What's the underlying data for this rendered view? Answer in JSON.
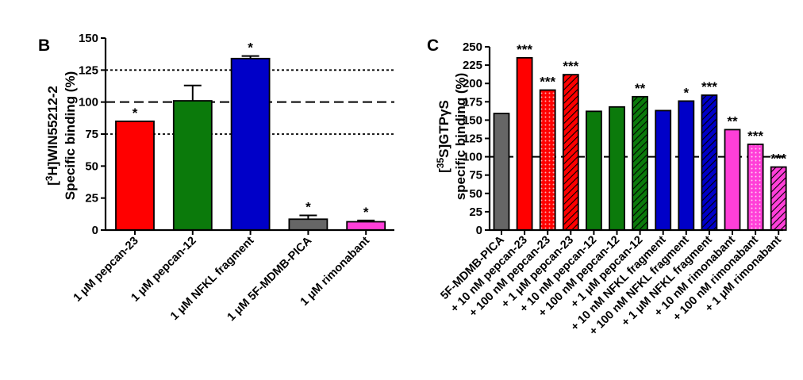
{
  "chart_data": [
    {
      "type": "bar",
      "panel_label": "B",
      "ylabel_line1": "[3H]WIN55212-2",
      "ylabel_line1_parts": {
        "pre": "[",
        "sup": "3",
        "post": "H]WIN55212-2"
      },
      "ylabel_line2": "Specific binding (%)",
      "ylim": [
        0,
        150
      ],
      "yticks": [
        0,
        25,
        50,
        75,
        100,
        125,
        150
      ],
      "reference_lines": [
        {
          "y": 75,
          "style": "dotted"
        },
        {
          "y": 100,
          "style": "dashed"
        },
        {
          "y": 125,
          "style": "dotted"
        }
      ],
      "categories": [
        "1 μM pepcan-23",
        "1 μM pepcan-12",
        "1 μM NFKL fragment",
        "1 μM 5F-MDMB-PICA",
        "1 μM rimonabant"
      ],
      "values": [
        85,
        101,
        134,
        8.5,
        6.5
      ],
      "errors": [
        0,
        12,
        2,
        3,
        1
      ],
      "significance": [
        "*",
        "",
        "*",
        "*",
        "*"
      ],
      "colors": [
        "#ff0000",
        "#0b7a0b",
        "#0000c8",
        "#666666",
        "#ff3fd8"
      ],
      "patterns": [
        "solid",
        "solid",
        "solid",
        "solid",
        "solid"
      ]
    },
    {
      "type": "bar",
      "panel_label": "C",
      "ylabel_line1": "[35S]GTPγS",
      "ylabel_line1_parts": {
        "pre": "[",
        "sup": "35",
        "post": "S]GTPγS"
      },
      "ylabel_line2": "specific binding (%)",
      "ylim": [
        0,
        250
      ],
      "yticks": [
        0,
        25,
        50,
        75,
        100,
        125,
        150,
        175,
        200,
        225,
        250
      ],
      "reference_lines": [
        {
          "y": 100,
          "style": "dashed"
        }
      ],
      "categories": [
        "5F-MDMB-PICA",
        "+ 10 nM pepcan-23",
        "+ 100 nM pepcan-23",
        "+ 1 μM pepcan-23",
        "+ 10 nM pepcan-12",
        "+ 100 nM pepcan-12",
        "+ 1 μM pepcan-12",
        "+ 10 nM NFKL fragment",
        "+ 100 nM NFKL fragment",
        "+ 1 μM NFKL fragment",
        "+ 10 nM rimonabant",
        "+ 100 nM rimonabant",
        "+ 1 μM rimonabant"
      ],
      "values": [
        159,
        235,
        191,
        212,
        162,
        168,
        182,
        163,
        176,
        184,
        137,
        117,
        86
      ],
      "significance": [
        "",
        "***",
        "***",
        "***",
        "",
        "",
        "**",
        "",
        "*",
        "***",
        "**",
        "***",
        "***"
      ],
      "colors": [
        "#666666",
        "#ff0000",
        "#ff0000",
        "#ff0000",
        "#0b7a0b",
        "#0b7a0b",
        "#0b7a0b",
        "#0000c8",
        "#0000c8",
        "#0000c8",
        "#ff3fd8",
        "#ff3fd8",
        "#ff3fd8"
      ],
      "patterns": [
        "solid",
        "solid",
        "dots",
        "hatch",
        "solid",
        "solid",
        "hatch",
        "solid",
        "solid",
        "hatch",
        "solid",
        "dots",
        "hatch"
      ]
    }
  ]
}
